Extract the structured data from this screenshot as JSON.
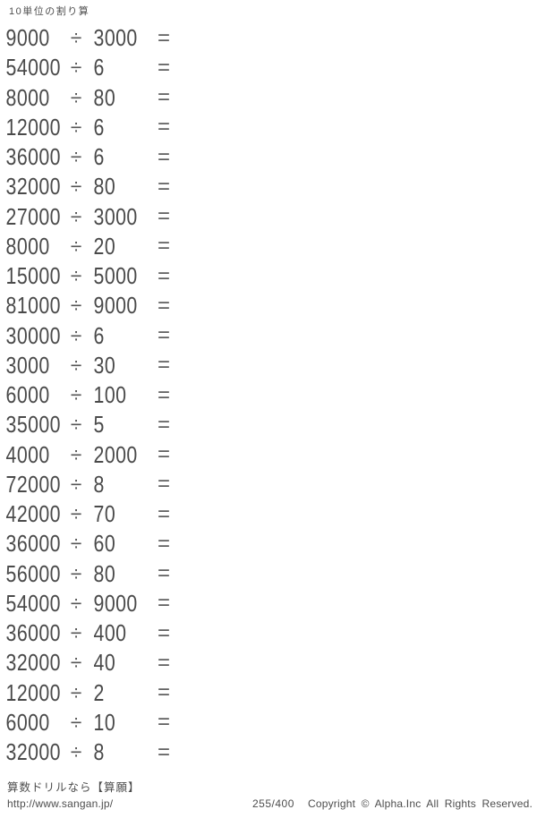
{
  "page": {
    "title": "10単位の割り算",
    "operators": {
      "divide": "÷",
      "equals": "="
    },
    "problems": [
      {
        "dividend": "9000",
        "divisor": "3000"
      },
      {
        "dividend": "54000",
        "divisor": "6"
      },
      {
        "dividend": "8000",
        "divisor": "80"
      },
      {
        "dividend": "12000",
        "divisor": "6"
      },
      {
        "dividend": "36000",
        "divisor": "6"
      },
      {
        "dividend": "32000",
        "divisor": "80"
      },
      {
        "dividend": "27000",
        "divisor": "3000"
      },
      {
        "dividend": "8000",
        "divisor": "20"
      },
      {
        "dividend": "15000",
        "divisor": "5000"
      },
      {
        "dividend": "81000",
        "divisor": "9000"
      },
      {
        "dividend": "30000",
        "divisor": "6"
      },
      {
        "dividend": "3000",
        "divisor": "30"
      },
      {
        "dividend": "6000",
        "divisor": "100"
      },
      {
        "dividend": "35000",
        "divisor": "5"
      },
      {
        "dividend": "4000",
        "divisor": "2000"
      },
      {
        "dividend": "72000",
        "divisor": "8"
      },
      {
        "dividend": "42000",
        "divisor": "70"
      },
      {
        "dividend": "36000",
        "divisor": "60"
      },
      {
        "dividend": "56000",
        "divisor": "80"
      },
      {
        "dividend": "54000",
        "divisor": "9000"
      },
      {
        "dividend": "36000",
        "divisor": "400"
      },
      {
        "dividend": "32000",
        "divisor": "40"
      },
      {
        "dividend": "12000",
        "divisor": "2"
      },
      {
        "dividend": "6000",
        "divisor": "10"
      },
      {
        "dividend": "32000",
        "divisor": "8"
      }
    ],
    "footer": {
      "promo": "算数ドリルなら【算願】",
      "url": "http://www.sangan.jp/",
      "page_number": "255/400",
      "copyright": "Copyright © Alpha.Inc All Rights Reserved."
    },
    "colors": {
      "text": "#4a4a4a",
      "background": "#ffffff"
    }
  }
}
